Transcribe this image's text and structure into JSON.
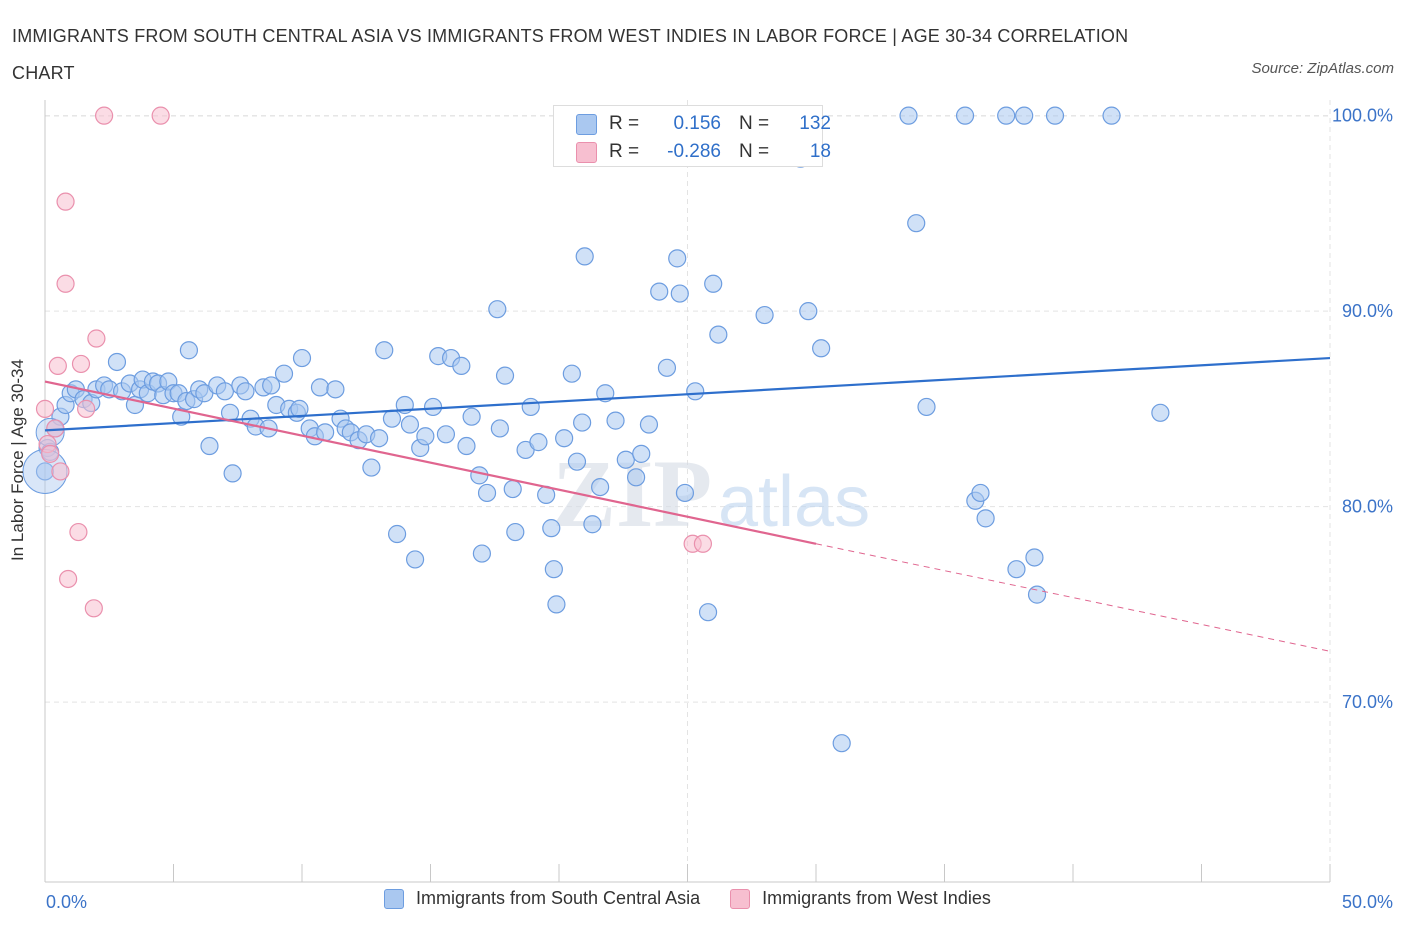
{
  "header": {
    "title": "IMMIGRANTS FROM SOUTH CENTRAL ASIA VS IMMIGRANTS FROM WEST INDIES IN LABOR FORCE | AGE 30-34 CORRELATION CHART",
    "source": "Source: ZipAtlas.com"
  },
  "stats": {
    "r_label": "R =",
    "n_label": "N =",
    "blue_r": "0.156",
    "blue_n": "132",
    "pink_r": "-0.286",
    "pink_n": "18"
  },
  "legend": {
    "blue": "Immigrants from South Central Asia",
    "pink": "Immigrants from West Indies"
  },
  "watermark": {
    "zip": "ZIP",
    "atlas": "atlas"
  },
  "colors": {
    "blue_fill": "#aac8f0",
    "blue_stroke": "#6d9de0",
    "blue_line": "#2e6fcc",
    "pink_fill": "#f7bfd0",
    "pink_stroke": "#ea90ad",
    "pink_line": "#e0658f",
    "tick_text": "#3b73c8"
  },
  "chart_data": {
    "type": "scatter",
    "title": "IMMIGRANTS FROM SOUTH CENTRAL ASIA VS IMMIGRANTS FROM WEST INDIES IN LABOR FORCE | AGE 30-34 CORRELATION CHART",
    "xlabel": "",
    "ylabel": "In Labor Force | Age 30-34",
    "xlim": [
      0,
      50
    ],
    "ylim": [
      60.8,
      100.8
    ],
    "x_tick_labels": [
      "0.0%",
      "50.0%"
    ],
    "y_ticks": [
      70,
      80,
      90,
      100
    ],
    "y_tick_labels": [
      "70.0%",
      "80.0%",
      "90.0%",
      "100.0%"
    ],
    "grid": true,
    "legend_position": "bottom",
    "series": [
      {
        "name": "Immigrants from South Central Asia",
        "r": 0.156,
        "n": 132,
        "trend": {
          "x": [
            0,
            50
          ],
          "y": [
            83.9,
            87.6
          ]
        },
        "points": [
          [
            0.0,
            81.8
          ],
          [
            0.1,
            83.0
          ],
          [
            0.2,
            82.8
          ],
          [
            0.4,
            84.0
          ],
          [
            0.6,
            84.6
          ],
          [
            0.8,
            85.2
          ],
          [
            1.0,
            85.8
          ],
          [
            1.2,
            86.0
          ],
          [
            1.5,
            85.5
          ],
          [
            1.8,
            85.3
          ],
          [
            2.0,
            86.0
          ],
          [
            2.3,
            86.2
          ],
          [
            2.5,
            86.0
          ],
          [
            2.8,
            87.4
          ],
          [
            3.0,
            85.9
          ],
          [
            3.3,
            86.3
          ],
          [
            3.5,
            85.2
          ],
          [
            3.7,
            86.0
          ],
          [
            3.8,
            86.5
          ],
          [
            4.0,
            85.8
          ],
          [
            4.2,
            86.4
          ],
          [
            4.4,
            86.3
          ],
          [
            4.6,
            85.7
          ],
          [
            4.8,
            86.4
          ],
          [
            5.0,
            85.8
          ],
          [
            5.2,
            85.8
          ],
          [
            5.3,
            84.6
          ],
          [
            5.5,
            85.4
          ],
          [
            5.6,
            88.0
          ],
          [
            5.8,
            85.5
          ],
          [
            6.0,
            86.0
          ],
          [
            6.2,
            85.8
          ],
          [
            6.4,
            83.1
          ],
          [
            6.7,
            86.2
          ],
          [
            7.0,
            85.9
          ],
          [
            7.2,
            84.8
          ],
          [
            7.3,
            81.7
          ],
          [
            7.6,
            86.2
          ],
          [
            7.8,
            85.9
          ],
          [
            8.0,
            84.5
          ],
          [
            8.2,
            84.1
          ],
          [
            8.5,
            86.1
          ],
          [
            8.7,
            84.0
          ],
          [
            8.8,
            86.2
          ],
          [
            9.0,
            85.2
          ],
          [
            9.3,
            86.8
          ],
          [
            9.5,
            85.0
          ],
          [
            9.8,
            84.8
          ],
          [
            9.9,
            85.0
          ],
          [
            10.0,
            87.6
          ],
          [
            10.3,
            84.0
          ],
          [
            10.5,
            83.6
          ],
          [
            10.7,
            86.1
          ],
          [
            10.9,
            83.8
          ],
          [
            11.3,
            86.0
          ],
          [
            11.5,
            84.5
          ],
          [
            11.7,
            84.0
          ],
          [
            11.9,
            83.8
          ],
          [
            12.2,
            83.4
          ],
          [
            12.5,
            83.7
          ],
          [
            12.7,
            82.0
          ],
          [
            13.0,
            83.5
          ],
          [
            13.2,
            88.0
          ],
          [
            13.5,
            84.5
          ],
          [
            13.7,
            78.6
          ],
          [
            14.0,
            85.2
          ],
          [
            14.2,
            84.2
          ],
          [
            14.4,
            77.3
          ],
          [
            14.6,
            83.0
          ],
          [
            14.8,
            83.6
          ],
          [
            15.1,
            85.1
          ],
          [
            15.3,
            87.7
          ],
          [
            15.6,
            83.7
          ],
          [
            15.8,
            87.6
          ],
          [
            16.2,
            87.2
          ],
          [
            16.4,
            83.1
          ],
          [
            16.6,
            84.6
          ],
          [
            16.9,
            81.6
          ],
          [
            17.0,
            77.6
          ],
          [
            17.2,
            80.7
          ],
          [
            17.6,
            90.1
          ],
          [
            17.7,
            84.0
          ],
          [
            17.9,
            86.7
          ],
          [
            18.2,
            80.9
          ],
          [
            18.3,
            78.7
          ],
          [
            18.7,
            82.9
          ],
          [
            18.9,
            85.1
          ],
          [
            19.2,
            83.3
          ],
          [
            19.5,
            80.6
          ],
          [
            19.7,
            78.9
          ],
          [
            19.8,
            76.8
          ],
          [
            19.9,
            75.0
          ],
          [
            20.2,
            83.5
          ],
          [
            20.5,
            86.8
          ],
          [
            20.7,
            82.3
          ],
          [
            20.9,
            84.3
          ],
          [
            21.0,
            92.8
          ],
          [
            21.3,
            79.1
          ],
          [
            21.6,
            81.0
          ],
          [
            21.8,
            85.8
          ],
          [
            22.2,
            84.4
          ],
          [
            22.6,
            82.4
          ],
          [
            23.0,
            81.5
          ],
          [
            23.2,
            82.7
          ],
          [
            23.5,
            84.2
          ],
          [
            23.9,
            91.0
          ],
          [
            24.2,
            87.1
          ],
          [
            24.6,
            92.7
          ],
          [
            24.7,
            90.9
          ],
          [
            24.9,
            80.7
          ],
          [
            25.3,
            85.9
          ],
          [
            25.8,
            74.6
          ],
          [
            26.0,
            91.4
          ],
          [
            26.2,
            88.8
          ],
          [
            28.0,
            89.8
          ],
          [
            29.7,
            90.0
          ],
          [
            30.2,
            88.1
          ],
          [
            31.0,
            67.9
          ],
          [
            33.6,
            100.0
          ],
          [
            33.9,
            94.5
          ],
          [
            34.3,
            85.1
          ],
          [
            35.8,
            100.0
          ],
          [
            36.2,
            80.3
          ],
          [
            36.4,
            80.7
          ],
          [
            36.6,
            79.4
          ],
          [
            37.4,
            100.0
          ],
          [
            37.8,
            76.8
          ],
          [
            38.1,
            100.0
          ],
          [
            38.5,
            77.4
          ],
          [
            38.6,
            75.5
          ],
          [
            39.3,
            100.0
          ],
          [
            41.5,
            100.0
          ],
          [
            43.4,
            84.8
          ],
          [
            29.4,
            97.8
          ]
        ]
      },
      {
        "name": "Immigrants from West Indies",
        "r": -0.286,
        "n": 18,
        "trend": {
          "x": [
            0,
            30
          ],
          "y": [
            86.4,
            78.1
          ]
        },
        "trend_dashed": {
          "x": [
            30,
            50
          ],
          "y": [
            78.1,
            72.6
          ]
        },
        "points": [
          [
            0.0,
            85.0
          ],
          [
            0.1,
            83.2
          ],
          [
            0.2,
            82.7
          ],
          [
            0.4,
            84.0
          ],
          [
            0.5,
            87.2
          ],
          [
            0.6,
            81.8
          ],
          [
            0.8,
            95.6
          ],
          [
            0.8,
            91.4
          ],
          [
            0.9,
            76.3
          ],
          [
            1.3,
            78.7
          ],
          [
            1.4,
            87.3
          ],
          [
            1.6,
            85.0
          ],
          [
            1.9,
            74.8
          ],
          [
            2.0,
            88.6
          ],
          [
            2.3,
            100.0
          ],
          [
            4.5,
            100.0
          ],
          [
            25.2,
            78.1
          ],
          [
            25.6,
            78.1
          ]
        ]
      }
    ]
  }
}
